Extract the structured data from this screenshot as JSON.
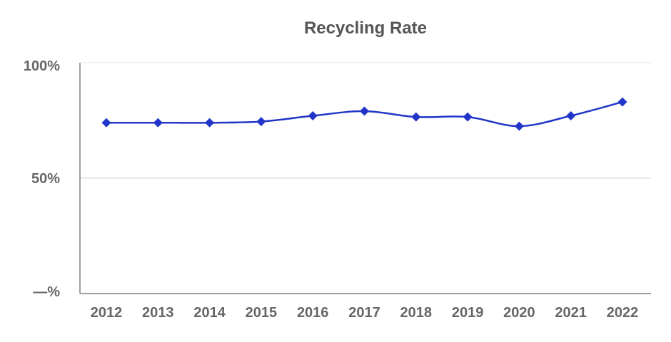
{
  "chart_data": {
    "type": "line",
    "title": "Recycling Rate",
    "categories": [
      "2012",
      "2013",
      "2014",
      "2015",
      "2016",
      "2017",
      "2018",
      "2019",
      "2020",
      "2021",
      "2022"
    ],
    "series": [
      {
        "name": "Recycling Rate",
        "values": [
          74,
          74,
          74,
          74.5,
          77,
          79,
          76.5,
          76.5,
          72.5,
          77,
          83
        ]
      }
    ],
    "xlabel": "",
    "ylabel": "",
    "ylim": [
      0,
      100
    ],
    "y_ticks": [
      {
        "value": 100,
        "label": "100%"
      },
      {
        "value": 50,
        "label": "50%"
      },
      {
        "value": 0,
        "label": "—%"
      }
    ],
    "grid": "horizontal",
    "legend": "none",
    "marker": "diamond",
    "line_smooth": true,
    "colors": {
      "line": "#2135c8",
      "marker": "#2135c8",
      "title": "#555555",
      "tick_label": "#666666",
      "axis": "#9e9e9e",
      "grid": "#e9e9e9",
      "grid_top": "#f1f1f1",
      "background": "#ffffff"
    }
  }
}
